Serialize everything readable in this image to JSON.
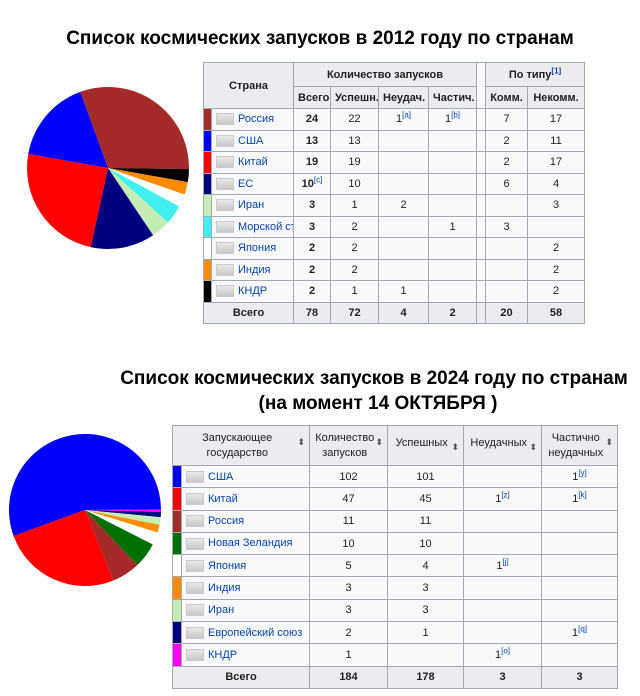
{
  "section1": {
    "title": "Список космических запусков в 2012 году по странам",
    "table": {
      "header": {
        "country": "Страна",
        "launches": "Количество запусков",
        "by_type": "По типу",
        "by_type_note": "[1]",
        "total": "Всего",
        "success": "Успешн.",
        "fail": "Неудач.",
        "partial": "Частич.",
        "commercial": "Комм.",
        "noncommercial": "Некомм."
      },
      "rows": [
        {
          "color": "#a52a2a",
          "country": "Россия",
          "total": 24,
          "success": 22,
          "fail": 1,
          "fail_note": "[a]",
          "partial": 1,
          "partial_note": "[b]",
          "commercial": 7,
          "noncommercial": 17
        },
        {
          "color": "#0000ff",
          "country": "США",
          "total": 13,
          "success": 13,
          "commercial": 2,
          "noncommercial": 11
        },
        {
          "color": "#ff0000",
          "country": "Китай",
          "total": 19,
          "success": 19,
          "commercial": 2,
          "noncommercial": 17
        },
        {
          "color": "#000080",
          "country": "ЕС",
          "total": 10,
          "total_note": "[c]",
          "success": 10,
          "commercial": 6,
          "noncommercial": 4
        },
        {
          "color": "#c6ecb4",
          "country": "Иран",
          "total": 3,
          "success": 1,
          "fail": 2,
          "noncommercial": 3
        },
        {
          "color": "#40f0f0",
          "country": "Морской старт",
          "total": 3,
          "success": 2,
          "partial": 1,
          "commercial": 3
        },
        {
          "color": "#ffffff",
          "country": "Япония",
          "total": 2,
          "success": 2,
          "noncommercial": 2
        },
        {
          "color": "#ff8c00",
          "country": "Индия",
          "total": 2,
          "success": 2,
          "noncommercial": 2
        },
        {
          "color": "#000000",
          "country": "КНДР",
          "total": 2,
          "success": 1,
          "fail": 1,
          "noncommercial": 2
        }
      ],
      "footer": {
        "label": "Всего",
        "total": 78,
        "success": 72,
        "fail": 4,
        "partial": 2,
        "commercial": 20,
        "noncommercial": 58
      }
    }
  },
  "section2": {
    "title": "Список космических запусков в 2024 году по странам",
    "subtitle": "(на момент 14 ОКТЯБРЯ )",
    "table": {
      "header": {
        "country": "Запускающее государство",
        "total": "Количество запусков",
        "success": "Успешных",
        "fail": "Неудачных",
        "partial": "Частично неудачных"
      },
      "rows": [
        {
          "color": "#0000ff",
          "country": "США",
          "total": 102,
          "success": 101,
          "partial": 1,
          "partial_note": "[y]"
        },
        {
          "color": "#ff0000",
          "country": "Китай",
          "total": 47,
          "success": 45,
          "fail": 1,
          "fail_note": "[z]",
          "partial": 1,
          "partial_note": "[k]"
        },
        {
          "color": "#a52a2a",
          "country": "Россия",
          "total": 11,
          "success": 11
        },
        {
          "color": "#007000",
          "country": "Новая Зеландия",
          "total": 10,
          "success": 10
        },
        {
          "color": "#ffffff",
          "country": "Япония",
          "total": 5,
          "success": 4,
          "fail": 1,
          "fail_note": "[j]"
        },
        {
          "color": "#ff8c00",
          "country": "Индия",
          "total": 3,
          "success": 3
        },
        {
          "color": "#c6ecb4",
          "country": "Иран",
          "total": 3,
          "success": 3
        },
        {
          "color": "#000080",
          "country": "Европейский союз",
          "total": 2,
          "success": 1,
          "partial": 1,
          "partial_note": "[q]"
        },
        {
          "color": "#ff00ff",
          "country": "КНДР",
          "total": 1,
          "fail": 1,
          "fail_note": "[o]"
        }
      ],
      "footer": {
        "label": "Всего",
        "total": 184,
        "success": 178,
        "fail": 3,
        "partial": 3
      }
    }
  }
}
